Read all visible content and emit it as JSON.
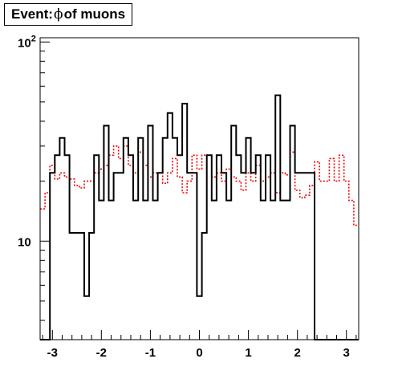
{
  "chart_data": {
    "type": "histogram",
    "title_prefix": "Event: ",
    "title_symbol": "ϕ",
    "title_suffix": " of muons",
    "xlabel": "",
    "ylabel": "",
    "xlim": [
      -3.25,
      3.25
    ],
    "ylim": [
      3.2,
      105
    ],
    "y_scale": "log",
    "grid": false,
    "legend": "none",
    "x_ticks": [
      -3,
      -2,
      -1,
      0,
      1,
      2,
      3
    ],
    "x_tick_labels": [
      "-3",
      "-2",
      "-1",
      "0",
      "1",
      "2",
      "3"
    ],
    "y_ticks": [
      10,
      100
    ],
    "y_tick_labels": [
      {
        "base": "10",
        "exp": ""
      },
      {
        "base": "10",
        "exp": "2"
      }
    ],
    "bin_edges": [
      -3.25,
      -3.15,
      -3.05,
      -2.95,
      -2.85,
      -2.75,
      -2.65,
      -2.55,
      -2.45,
      -2.35,
      -2.25,
      -2.15,
      -2.05,
      -1.95,
      -1.85,
      -1.75,
      -1.65,
      -1.55,
      -1.45,
      -1.35,
      -1.25,
      -1.15,
      -1.05,
      -0.95,
      -0.85,
      -0.75,
      -0.65,
      -0.55,
      -0.45,
      -0.35,
      -0.25,
      -0.15,
      -0.05,
      0.05,
      0.15,
      0.25,
      0.35,
      0.45,
      0.55,
      0.65,
      0.75,
      0.85,
      0.95,
      1.05,
      1.15,
      1.25,
      1.35,
      1.45,
      1.55,
      1.65,
      1.75,
      1.85,
      1.95,
      2.05,
      2.15,
      2.25,
      2.35,
      2.45,
      2.55,
      2.65,
      2.75,
      2.85,
      2.95,
      3.05,
      3.15,
      3.25
    ],
    "series": [
      {
        "style": "solid",
        "color": "#000000",
        "values": [
          0,
          0,
          22,
          27,
          33,
          27,
          11,
          11,
          11,
          5.3,
          11,
          27,
          16,
          38,
          16,
          22,
          22,
          33,
          27,
          16,
          33,
          16,
          38,
          16,
          22,
          33,
          44,
          33,
          27,
          49,
          22,
          22,
          5.3,
          11,
          27,
          16,
          27,
          22,
          16,
          38,
          27,
          22,
          33,
          22,
          27,
          16,
          27,
          16,
          54,
          16,
          16,
          38,
          22,
          22,
          22,
          22,
          0,
          0,
          0,
          0,
          0,
          0,
          0,
          0,
          0
        ]
      },
      {
        "style": "dotted",
        "color": "#ee0000",
        "values": [
          14.5,
          17.5,
          24,
          20.5,
          22,
          21,
          20.5,
          19,
          18.5,
          20,
          20,
          22,
          23,
          24,
          27,
          30,
          26,
          30,
          24,
          22,
          28,
          24,
          21,
          22,
          22,
          19.5,
          22,
          26,
          21,
          17.5,
          20,
          27,
          23,
          27,
          27,
          21,
          22,
          20,
          23,
          21,
          20,
          18,
          22,
          20,
          24,
          20,
          21,
          22,
          17.5,
          22,
          21.5,
          28,
          18,
          16.5,
          17,
          19,
          25,
          20,
          20,
          26,
          20,
          27,
          20,
          16,
          12
        ]
      }
    ]
  }
}
